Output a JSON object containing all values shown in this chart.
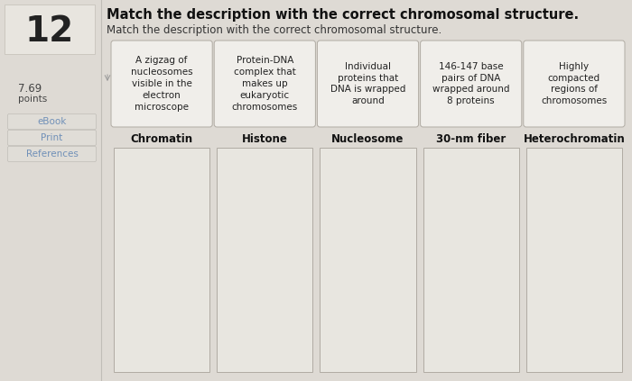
{
  "title": "Match the description with the correct chromosomal structure.",
  "subtitle": "Match the description with the correct chromosomal structure.",
  "question_number": "12",
  "description_boxes": [
    "A zigzag of\nnucleosomes\nvisible in the\nelectron\nmicroscope",
    "Protein-DNA\ncomplex that\nmakes up\neukaryotic\nchromosomes",
    "Individual\nproteins that\nDNA is wrapped\naround",
    "146-147 base\npairs of DNA\nwrapped around\n8 proteins",
    "Highly\ncompacted\nregions of\nchromosomes"
  ],
  "column_labels": [
    "Chromatin",
    "Histone",
    "Nucleosome",
    "30-nm fiber",
    "Heterochromatin"
  ],
  "bg_color": "#dedad4",
  "box_color": "#f0eeea",
  "drop_box_color": "#e8e6e0",
  "box_border_color": "#b0aba3",
  "number_box_color": "#e8e5df",
  "number_box_border": "#c8c4bc",
  "btn_bg": "#e0ddd7",
  "btn_border": "#c0bdb7",
  "ebook_color": "#7090b8",
  "title_fontsize": 10.5,
  "subtitle_fontsize": 8.5,
  "desc_fontsize": 7.5,
  "col_label_fontsize": 8.5,
  "sidebar_text_color": "#444444",
  "title_color": "#111111",
  "subtitle_color": "#333333"
}
